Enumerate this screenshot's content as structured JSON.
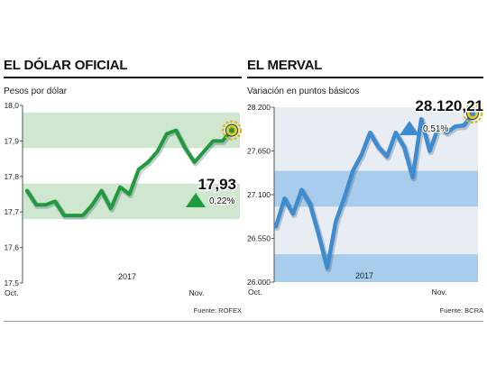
{
  "chart_data": [
    {
      "type": "line",
      "title": "EL DÓLAR OFICIAL",
      "ylabel": "Pesos por dólar",
      "ylim": [
        17.5,
        18.0
      ],
      "yticks": [
        "18,0",
        "17,9",
        "17,8",
        "17,7",
        "17,6",
        "17,5"
      ],
      "ytick_values": [
        18.0,
        17.9,
        17.8,
        17.7,
        17.6,
        17.5
      ],
      "xtick_labels": [
        "Oct.",
        "2017",
        "Nov."
      ],
      "values": [
        17.76,
        17.72,
        17.72,
        17.73,
        17.69,
        17.69,
        17.69,
        17.72,
        17.76,
        17.71,
        17.77,
        17.75,
        17.82,
        17.84,
        17.87,
        17.92,
        17.93,
        17.88,
        17.84,
        17.87,
        17.9,
        17.9,
        17.93
      ],
      "last_value_label": "17,93",
      "change_label": "0,22%",
      "line_color": "#1f9a3c",
      "band_color": "#cfe6cf",
      "source": "Fuente: ROFEX"
    },
    {
      "type": "line",
      "title": "EL MERVAL",
      "ylabel": "Variación en puntos básicos",
      "ylim": [
        26000,
        28200
      ],
      "yticks": [
        "28.200",
        "27.650",
        "27.100",
        "26.550",
        "26.000"
      ],
      "ytick_values": [
        28200,
        27650,
        27100,
        26550,
        26000
      ],
      "xtick_labels": [
        "Oct.",
        "2017",
        "Nov."
      ],
      "values": [
        26700,
        27050,
        26860,
        27160,
        26980,
        26600,
        26180,
        26760,
        27060,
        27400,
        27600,
        27880,
        27700,
        27580,
        27880,
        27700,
        27320,
        28050,
        27650,
        27950,
        27880,
        27960,
        27970,
        28120
      ],
      "last_value_label": "28.120,21",
      "change_label": "0,51%",
      "line_color": "#3e8bd0",
      "band_color": "#a8cdec",
      "source": "Fuente: BCRA"
    }
  ]
}
